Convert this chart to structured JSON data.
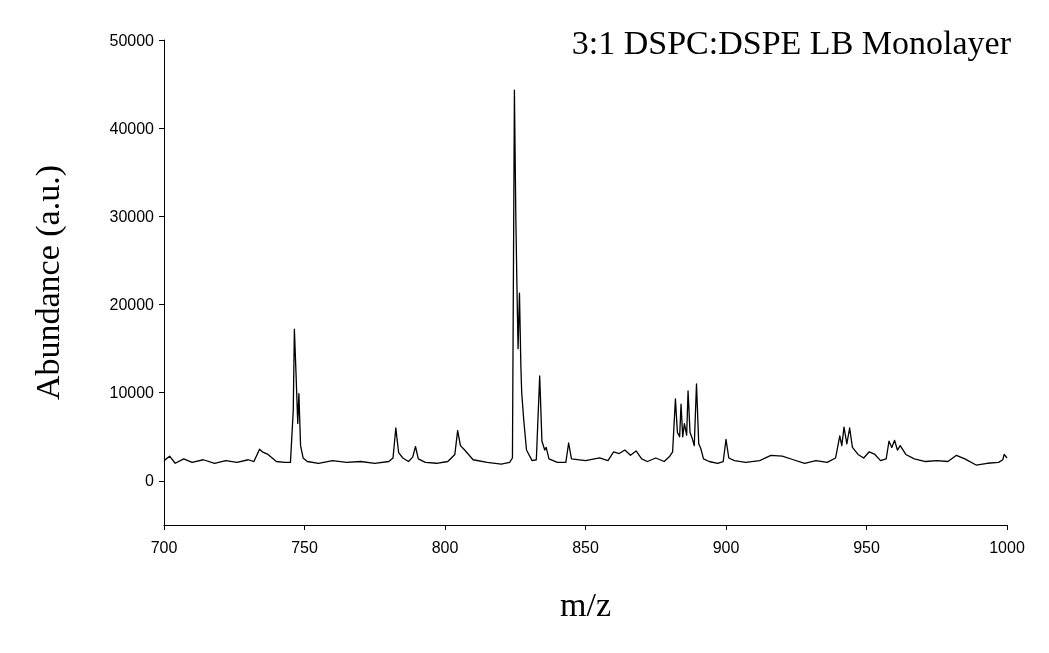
{
  "chart_data": {
    "type": "line",
    "title": "3:1 DSPC:DSPE LB Monolayer",
    "xlabel": "m/z",
    "ylabel": "Abundance (a.u.)",
    "series": [
      {
        "color": "#000000",
        "x": [
          700,
          702,
          704,
          707,
          710,
          714,
          718,
          722,
          726,
          730,
          732,
          734,
          735,
          737,
          740,
          743,
          745,
          746,
          746.4,
          747,
          747.6,
          748,
          748.6,
          749.5,
          751,
          755,
          760,
          765,
          770,
          775,
          780,
          781.5,
          782.5,
          783.5,
          785,
          787,
          788.5,
          789.5,
          790.5,
          793,
          797,
          801,
          803.5,
          804.5,
          805.5,
          807,
          810,
          815,
          820,
          823,
          824,
          824.7,
          825.2,
          825.6,
          826,
          826.5,
          827,
          827.3,
          828,
          829,
          831,
          832.5,
          833.7,
          834.5,
          835.5,
          836,
          837,
          840,
          843,
          844,
          845,
          850,
          855,
          858,
          860,
          862,
          864,
          866,
          868,
          870,
          872,
          875,
          878,
          880,
          881,
          882,
          882.7,
          883.5,
          884,
          884.6,
          885.2,
          886,
          886.5,
          887.2,
          888,
          888.7,
          889.5,
          890.3,
          891,
          892,
          894,
          897,
          899,
          900,
          901,
          903,
          907,
          912,
          916,
          920,
          924,
          928,
          932,
          936,
          939,
          940.5,
          941.2,
          942,
          943,
          944,
          945,
          945.5,
          947,
          949,
          951,
          953,
          955,
          957,
          958,
          959,
          960,
          961,
          962,
          964,
          967,
          971,
          975,
          979,
          982,
          985,
          989,
          993,
          997,
          998.5,
          999,
          1000
        ],
        "values": [
          2300,
          2800,
          2000,
          2500,
          2100,
          2400,
          2000,
          2300,
          2100,
          2400,
          2200,
          3600,
          3300,
          3000,
          2200,
          2100,
          2100,
          8000,
          17200,
          12000,
          6500,
          9900,
          4000,
          2600,
          2200,
          2000,
          2300,
          2100,
          2200,
          2000,
          2200,
          2600,
          6000,
          3200,
          2600,
          2200,
          2700,
          3900,
          2500,
          2100,
          2000,
          2200,
          3000,
          5700,
          4000,
          3500,
          2400,
          2100,
          1900,
          2100,
          2600,
          44300,
          30000,
          22100,
          15000,
          21300,
          13000,
          10000,
          7000,
          3500,
          2300,
          2400,
          11900,
          4500,
          3500,
          3800,
          2500,
          2100,
          2100,
          4300,
          2500,
          2300,
          2600,
          2300,
          3300,
          3100,
          3500,
          2900,
          3400,
          2500,
          2200,
          2600,
          2200,
          2800,
          3300,
          9300,
          5500,
          5000,
          8700,
          5000,
          6500,
          5200,
          10200,
          5500,
          4800,
          4000,
          11000,
          4200,
          3700,
          2500,
          2200,
          2000,
          2200,
          4700,
          2600,
          2300,
          2100,
          2300,
          2900,
          2800,
          2400,
          2000,
          2300,
          2100,
          2600,
          5100,
          4000,
          6100,
          4200,
          6000,
          3800,
          3600,
          3000,
          2600,
          3300,
          3000,
          2300,
          2500,
          4500,
          3800,
          4600,
          3500,
          4000,
          3000,
          2500,
          2200,
          2300,
          2200,
          2900,
          2500,
          1800,
          2000,
          2100,
          2400,
          3000,
          2600
        ]
      }
    ],
    "xlim": [
      700,
      1000
    ],
    "xticks": [
      700,
      750,
      800,
      850,
      900,
      950,
      1000
    ],
    "ylim": [
      -5000,
      50000
    ],
    "yticks": [
      0,
      10000,
      20000,
      30000,
      40000,
      50000
    ],
    "grid": false,
    "marker": "none",
    "line_style": "solid"
  }
}
